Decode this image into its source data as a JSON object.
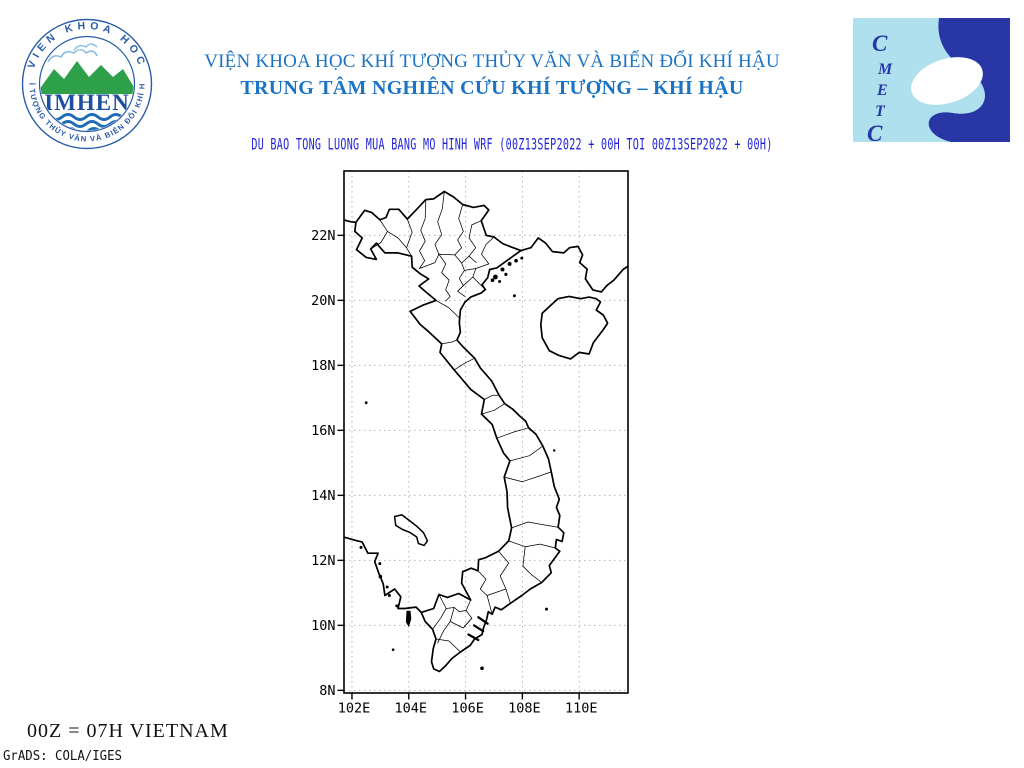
{
  "header": {
    "line1": "VIỆN KHOA HỌC KHÍ TƯỢNG THỦY VĂN VÀ BIẾN ĐỔI KHÍ HẬU",
    "line2": "TRUNG TÂM NGHIÊN CỨU KHÍ TƯỢNG – KHÍ HẬU",
    "text_color": "#1a73c4"
  },
  "imhen_logo": {
    "ring_top": "VIEN KHOA HOC",
    "ring_bottom": "KHÍ TƯỢNG THỦY VĂN VÀ BIẾN ĐỔI KHÍ HẬU",
    "acronym": "IMHEN",
    "colors": {
      "ring_text": "#2a5caa",
      "mountain": "#2ea04a",
      "wave": "#1f6cb8",
      "acronym": "#1c4f9e",
      "cloud": "#8abede"
    }
  },
  "cmetc_logo": {
    "letters": [
      "C",
      "M",
      "E",
      "T",
      "C"
    ],
    "colors": {
      "bg": "#aee0ee",
      "dark": "#2936a5",
      "letter": "#2936a5"
    }
  },
  "map": {
    "title": "DU BAO TONG LUONG MUA BANG MO HINH WRF (00Z13SEP2022 + 00H TOI 00Z13SEP2022 + 00H)",
    "title_color": "#2323d6",
    "lat_tick_labels": [
      "22N",
      "20N",
      "18N",
      "16N",
      "14N",
      "12N",
      "10N",
      "8N"
    ],
    "lat_tick_values": [
      22,
      20,
      18,
      16,
      14,
      12,
      10,
      8
    ],
    "lon_tick_labels": [
      "102E",
      "104E",
      "106E",
      "108E",
      "110E"
    ],
    "lon_tick_values": [
      102,
      104,
      106,
      108,
      110
    ],
    "line_color": "#000000",
    "grid_color": "#b4b4b4"
  },
  "footer": {
    "note": "00Z = 07H VIETNAM",
    "credit": "GrADS: COLA/IGES"
  }
}
